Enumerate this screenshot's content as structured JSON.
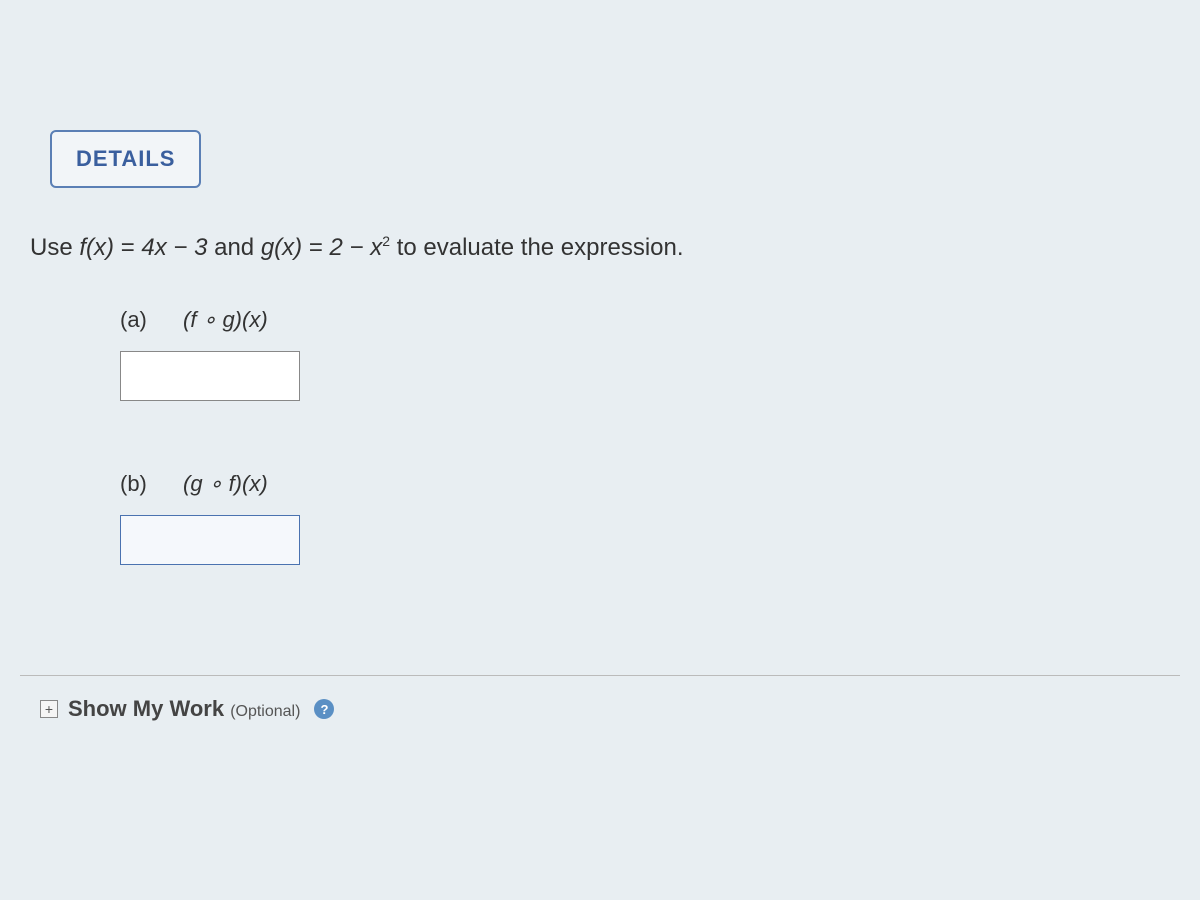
{
  "details_button": {
    "label": "DETAILS"
  },
  "prompt": {
    "prefix": "Use ",
    "f_def_lhs": "f(x)",
    "f_def_rhs": "4x − 3",
    "connector": " and ",
    "g_def_lhs": "g(x)",
    "g_def_rhs_base": "2 − x",
    "g_def_rhs_exp": "2",
    "suffix": " to evaluate the expression."
  },
  "parts": {
    "a": {
      "letter": "(a)",
      "expr": "(f ∘ g)(x)",
      "value": ""
    },
    "b": {
      "letter": "(b)",
      "expr": "(g ∘ f)(x)",
      "value": ""
    }
  },
  "show_work": {
    "label": "Show My Work",
    "optional": "(Optional)",
    "expand_symbol": "+",
    "help_symbol": "?"
  },
  "colors": {
    "background": "#e8eef2",
    "accent": "#5b7fb5",
    "accent_text": "#3a5f9e",
    "border": "#888",
    "help_bg": "#5a8fc4"
  }
}
